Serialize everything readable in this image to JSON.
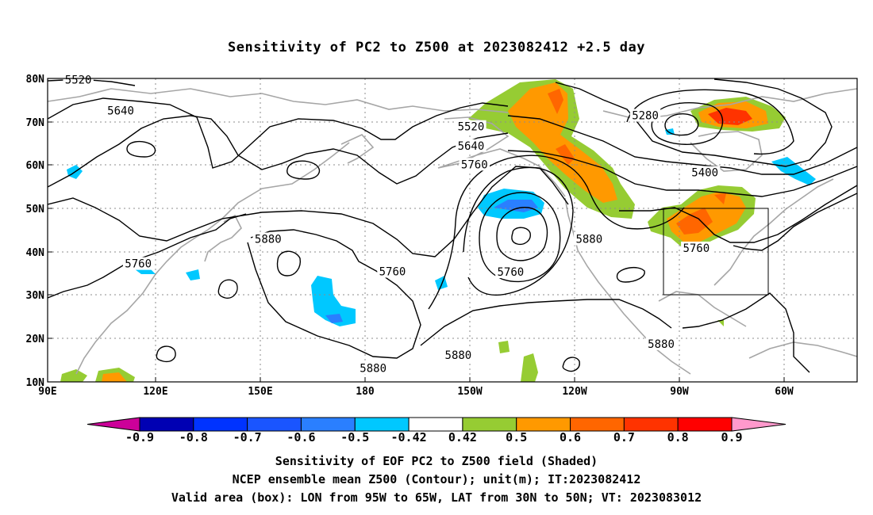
{
  "title": "Sensitivity of PC2 to Z500 at 2023082412 +2.5 day",
  "map": {
    "lat_labels": [
      "80N",
      "70N",
      "60N",
      "50N",
      "40N",
      "30N",
      "20N",
      "10N"
    ],
    "lon_labels": [
      "90E",
      "120E",
      "150E",
      "180",
      "150W",
      "120W",
      "90W",
      "60W"
    ],
    "contour_labels": [
      {
        "text": "5520",
        "lon": 98.9,
        "lat": 79.7
      },
      {
        "text": "5640",
        "lon": 111.2,
        "lat": 72.6
      },
      {
        "text": "5520",
        "lon": 212.9,
        "lat": 68.9
      },
      {
        "text": "5640",
        "lon": 212.9,
        "lat": 64.5
      },
      {
        "text": "5760",
        "lon": 213.9,
        "lat": 60.2
      },
      {
        "text": "5280",
        "lon": 263.5,
        "lat": 71.5
      },
      {
        "text": "5400",
        "lon": 280.8,
        "lat": 58.3
      },
      {
        "text": "5880",
        "lon": 154.0,
        "lat": 43.0
      },
      {
        "text": "5760",
        "lon": 116.3,
        "lat": 37.3
      },
      {
        "text": "5760",
        "lon": 190.1,
        "lat": 35.5
      },
      {
        "text": "5760",
        "lon": 224.4,
        "lat": 35.4
      },
      {
        "text": "5880",
        "lon": 247.2,
        "lat": 43.0
      },
      {
        "text": "5760",
        "lon": 278.3,
        "lat": 40.9
      },
      {
        "text": "5880",
        "lon": 268.1,
        "lat": 18.8
      },
      {
        "text": "5880",
        "lon": 184.5,
        "lat": 13.2
      },
      {
        "text": "5880",
        "lon": 209.2,
        "lat": 16.2
      }
    ],
    "valid_box": {
      "lon_min": -95,
      "lon_max": -65,
      "lat_min": 30,
      "lat_max": 50
    }
  },
  "colorbar": {
    "levels": [
      "-0.9",
      "-0.8",
      "-0.7",
      "-0.6",
      "-0.5",
      "-0.42",
      "0.42",
      "0.5",
      "0.6",
      "0.7",
      "0.8",
      "0.9"
    ],
    "colors": [
      "#cc0099",
      "#0000b3",
      "#0033ff",
      "#1a55ff",
      "#2a7fff",
      "#00c8ff",
      "#ffffff",
      "#96cc33",
      "#ff9900",
      "#ff6600",
      "#ff3300",
      "#ff0000",
      "#ff99cc"
    ]
  },
  "caption": {
    "line1": "Sensitivity of EOF PC2 to Z500 field (Shaded)",
    "line2": "NCEP ensemble mean Z500 (Contour); unit(m); IT:2023082412",
    "line3": "Valid area (box): LON from 95W to 65W, LAT from 30N to 50N; VT: 2023083012"
  }
}
